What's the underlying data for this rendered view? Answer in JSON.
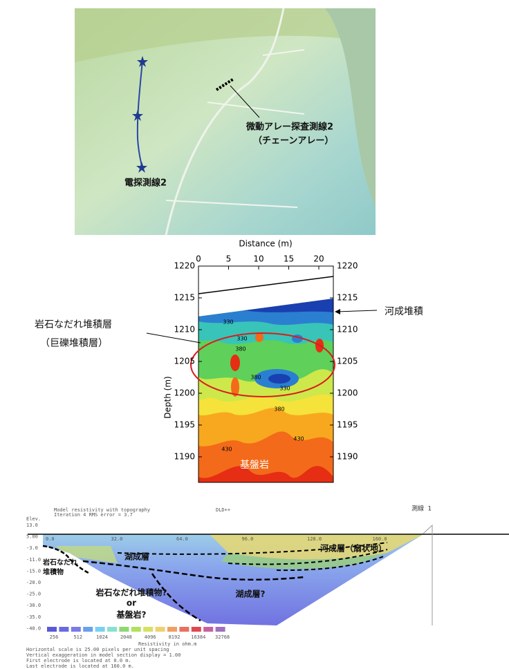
{
  "map": {
    "labels": [
      "微動アレー探査測線2",
      "（チェーンアレー）",
      "電探測線2"
    ]
  },
  "profile": {
    "x_axis_title": "Distance (m)",
    "y_axis_title": "Depth (m)",
    "x_ticks": [
      "0",
      "5",
      "10",
      "15",
      "20"
    ],
    "y_ticks_left": [
      "1220",
      "1215",
      "1210",
      "1205",
      "1200",
      "1195",
      "1190"
    ],
    "y_ticks_right": [
      "1220",
      "1215",
      "1210",
      "1205",
      "1200",
      "1195",
      "1190"
    ],
    "contour_labels": [
      "330",
      "330",
      "380",
      "330",
      "380",
      "380",
      "430",
      "430"
    ],
    "annotations": [
      "岩石なだれ堆積層",
      "（巨礫堆積層）",
      "河成堆積",
      "基盤岩"
    ]
  },
  "section": {
    "header": [
      "Model resistivity with topography",
      "Iteration 4 RMS error = 3.7",
      "DLD++",
      "測線 1"
    ],
    "y_axis_title": "Elev.",
    "y_ticks": [
      "13.0",
      "5.00",
      "-3.0",
      "-11.0",
      "-15.0",
      "-20.0",
      "-25.0",
      "-30.0",
      "-35.0",
      "-40.0"
    ],
    "x_ticks": [
      "0.0",
      "32.0",
      "64.0",
      "96.0",
      "128.0",
      "160.0"
    ],
    "colorbar_ticks": [
      "256",
      "512",
      "1024",
      "2048",
      "4096",
      "8192",
      "16384",
      "32768"
    ],
    "colorbar_title": "Resistivity in ohm.m",
    "overlays": [
      "湖成層",
      "河成層（扇状地）",
      "岩石なだれ",
      "堆積物",
      "岩石なだれ堆積物?",
      "or",
      "基盤岩?",
      "湖成層?"
    ],
    "footer": [
      "Horizontal scale is 25.00 pixels per unit spacing",
      "Vertical exaggeration in model section display = 1.00",
      "First electrode is located at 0.0 m.",
      "Last electrode is located at 160.0 m."
    ]
  }
}
